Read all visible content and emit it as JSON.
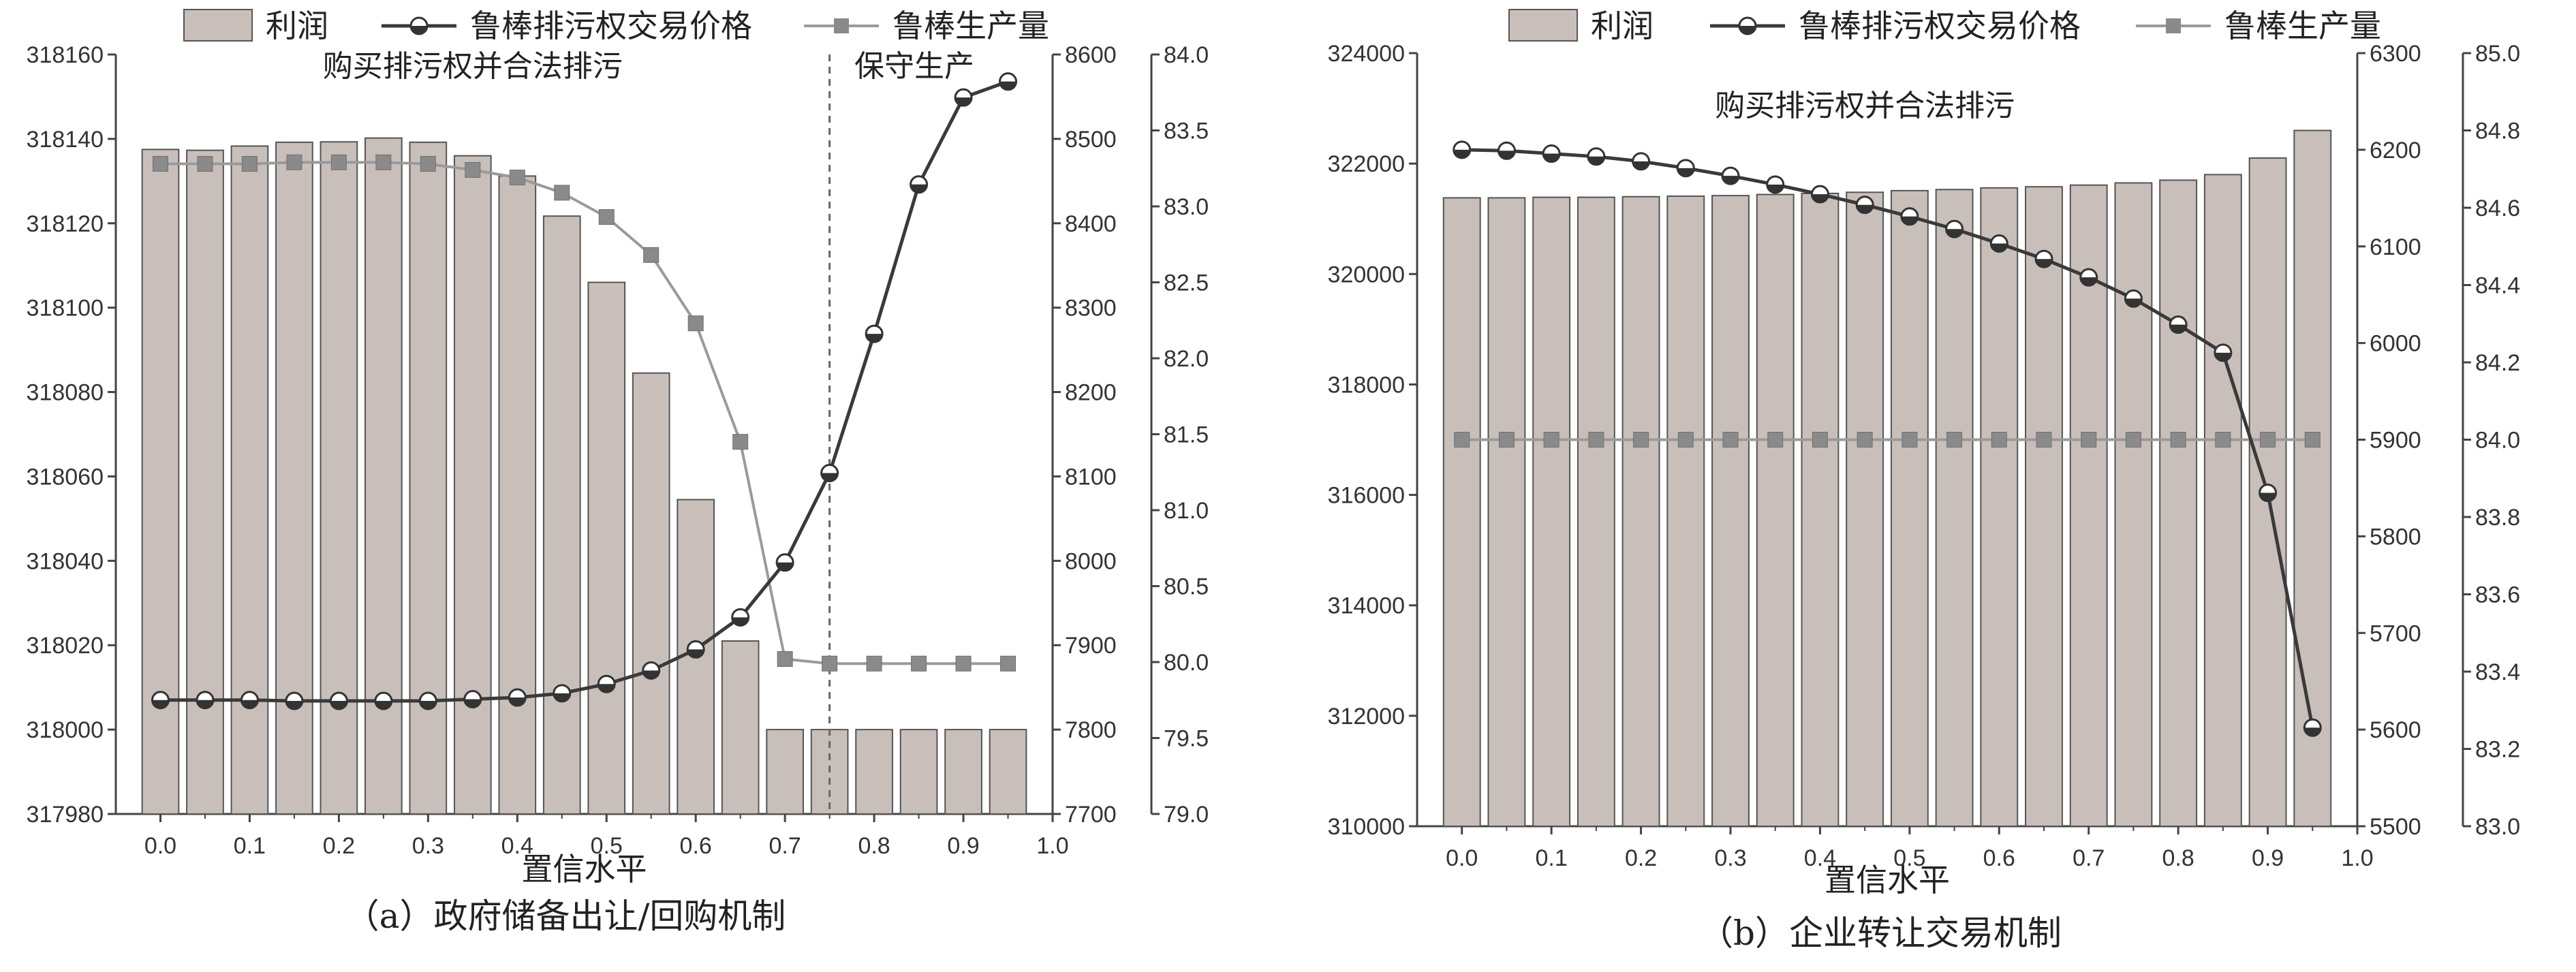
{
  "legend": {
    "bar_label": "利润",
    "price_label": "鲁棒排污权交易价格",
    "output_label": "鲁棒生产量"
  },
  "colors": {
    "bar_fill": "#c9bfba",
    "bar_stroke": "#555555",
    "price_line": "#3a3a3a",
    "output_line": "#9a9a9a",
    "axis": "#444444"
  },
  "chart_data": [
    {
      "type": "bar",
      "panel": "a",
      "caption": "（a）政府储备出让/回购机制",
      "xlabel": "置信水平",
      "xlim": [
        -0.05,
        1.0
      ],
      "xticks": [
        0.0,
        0.1,
        0.2,
        0.3,
        0.4,
        0.5,
        0.6,
        0.7,
        0.8,
        0.9,
        1.0
      ],
      "xticks_label": [
        "0.0",
        "0.1",
        "0.2",
        "0.3",
        "0.4",
        "0.5",
        "0.6",
        "0.7",
        "0.8",
        "0.9",
        "1.0"
      ],
      "x": [
        0.0,
        0.05,
        0.1,
        0.15,
        0.2,
        0.25,
        0.3,
        0.35,
        0.4,
        0.45,
        0.5,
        0.55,
        0.6,
        0.65,
        0.7,
        0.75,
        0.8,
        0.85,
        0.9,
        0.95
      ],
      "profit": {
        "name": "利润",
        "ylim": [
          317980,
          318160
        ],
        "yticks": [
          317980,
          318000,
          318020,
          318040,
          318060,
          318080,
          318100,
          318120,
          318140,
          318160
        ],
        "values": [
          318137.5,
          318137.3,
          318138.3,
          318139.2,
          318139.3,
          318140.2,
          318139.2,
          318136.0,
          318131.2,
          318121.7,
          318106.0,
          318084.5,
          318054.5,
          318021.0,
          318000,
          318000,
          318000,
          318000,
          318000,
          318000
        ]
      },
      "price": {
        "name": "鲁棒排污权交易价格",
        "ylim": [
          7700,
          8600
        ],
        "yticks": [
          7700,
          7800,
          7900,
          8000,
          8100,
          8200,
          8300,
          8400,
          8500,
          8600
        ],
        "values": [
          7835,
          7835,
          7835,
          7834,
          7834,
          7834,
          7834,
          7836,
          7838,
          7843,
          7854,
          7870,
          7895,
          7933,
          7998,
          8104,
          8269,
          8446,
          8549,
          8568
        ]
      },
      "output": {
        "name": "鲁棒生产量",
        "ylim": [
          79.0,
          84.0
        ],
        "yticks": [
          79.0,
          79.5,
          80.0,
          80.5,
          81.0,
          81.5,
          82.0,
          82.5,
          83.0,
          83.5,
          84.0
        ],
        "yticks_label": [
          "79.0",
          "79.5",
          "80.0",
          "80.5",
          "81.0",
          "81.5",
          "82.0",
          "82.5",
          "83.0",
          "83.5",
          "84.0"
        ],
        "values": [
          83.28,
          83.28,
          83.28,
          83.29,
          83.29,
          83.29,
          83.28,
          83.24,
          83.19,
          83.09,
          82.93,
          82.68,
          82.23,
          81.45,
          80.02,
          79.99,
          79.99,
          79.99,
          79.99,
          79.99
        ]
      },
      "annotations": [
        {
          "text": "购买排污权并合法排污",
          "x": 0.35
        },
        {
          "text": "保守生产",
          "x": 0.845
        }
      ],
      "divider_x": 0.75
    },
    {
      "type": "bar",
      "panel": "b",
      "caption": "（b）企业转让交易机制",
      "xlabel": "置信水平",
      "xlim": [
        -0.05,
        1.0
      ],
      "xticks": [
        0.0,
        0.1,
        0.2,
        0.3,
        0.4,
        0.5,
        0.6,
        0.7,
        0.8,
        0.9,
        1.0
      ],
      "xticks_label": [
        "0.0",
        "0.1",
        "0.2",
        "0.3",
        "0.4",
        "0.5",
        "0.6",
        "0.7",
        "0.8",
        "0.9",
        "1.0"
      ],
      "x": [
        0.0,
        0.05,
        0.1,
        0.15,
        0.2,
        0.25,
        0.3,
        0.35,
        0.4,
        0.45,
        0.5,
        0.55,
        0.6,
        0.65,
        0.7,
        0.75,
        0.8,
        0.85,
        0.9,
        0.95
      ],
      "profit": {
        "name": "利润",
        "ylim": [
          310000,
          324000
        ],
        "yticks": [
          310000,
          312000,
          314000,
          316000,
          318000,
          320000,
          322000,
          324000
        ],
        "values": [
          321380,
          321380,
          321390,
          321390,
          321400,
          321410,
          321420,
          321440,
          321460,
          321480,
          321510,
          321530,
          321560,
          321580,
          321610,
          321650,
          321700,
          321800,
          322100,
          322600
        ]
      },
      "price": {
        "name": "鲁棒排污权交易价格",
        "ylim": [
          5500,
          6300
        ],
        "yticks": [
          5500,
          5600,
          5700,
          5800,
          5900,
          6000,
          6100,
          6200,
          6300
        ],
        "values": [
          6200,
          6199,
          6196,
          6193,
          6188,
          6181,
          6173,
          6164,
          6154,
          6143,
          6131,
          6118,
          6103,
          6087,
          6068,
          6046,
          6019,
          5990,
          5845,
          5602
        ]
      },
      "output": {
        "name": "鲁棒生产量",
        "ylim": [
          83.0,
          85.0
        ],
        "yticks": [
          83.0,
          83.2,
          83.4,
          83.6,
          83.8,
          84.0,
          84.2,
          84.4,
          84.6,
          84.8,
          85.0
        ],
        "yticks_label": [
          "83.0",
          "83.2",
          "83.4",
          "83.6",
          "83.8",
          "84.0",
          "84.2",
          "84.4",
          "84.6",
          "84.8",
          "85.0"
        ],
        "values": [
          84.0,
          84.0,
          84.0,
          84.0,
          84.0,
          84.0,
          84.0,
          84.0,
          84.0,
          84.0,
          84.0,
          84.0,
          84.0,
          84.0,
          84.0,
          84.0,
          84.0,
          84.0,
          84.0,
          84.0
        ]
      },
      "annotations": [
        {
          "text": "购买排污权并合法排污",
          "x": 0.45
        }
      ],
      "divider_x": null
    }
  ]
}
